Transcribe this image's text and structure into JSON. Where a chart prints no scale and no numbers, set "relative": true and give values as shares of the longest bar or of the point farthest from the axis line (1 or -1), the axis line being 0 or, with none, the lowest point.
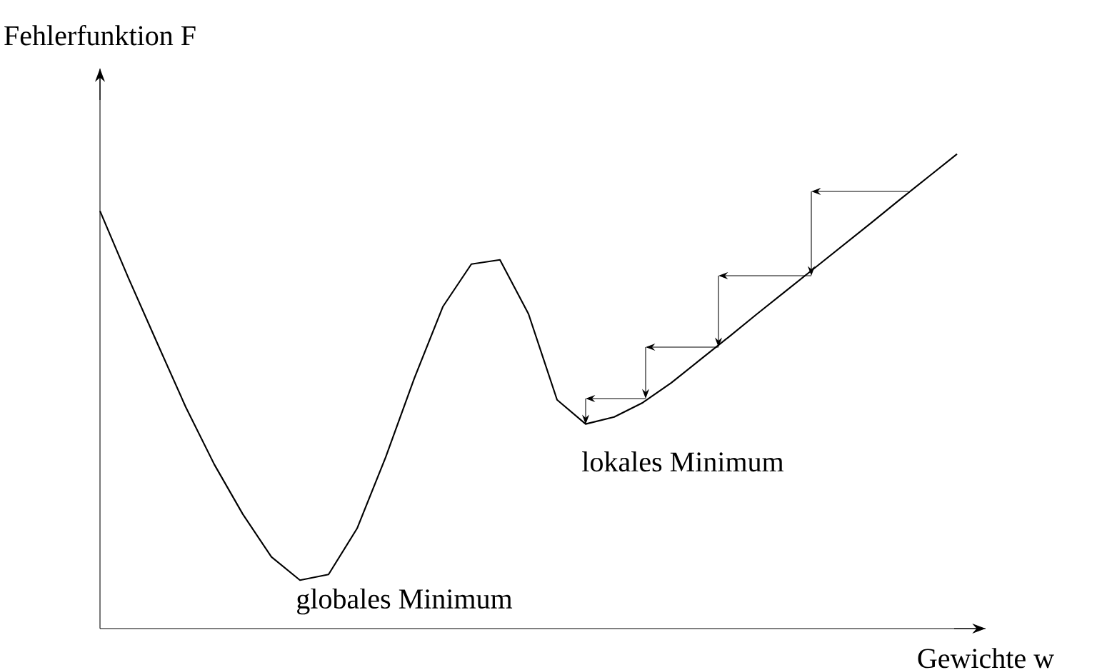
{
  "chart_data": {
    "type": "line",
    "relative": true,
    "xlabel": "Gewichte w",
    "ylabel": "Fehlerfunktion F",
    "annotations": [
      "globales Minimum",
      "lokales Minimum"
    ],
    "marker": "none",
    "line_style": "solid",
    "categories": [
      null,
      null,
      null,
      null,
      null,
      null,
      null,
      null,
      null,
      null,
      null,
      null,
      null,
      null,
      null,
      null,
      null,
      null,
      null,
      null,
      null,
      null,
      null,
      null,
      null,
      null,
      null,
      null,
      null,
      null,
      null
    ],
    "series": [
      {
        "color": "#000000",
        "values": [
          0.88,
          0.738,
          0.602,
          0.467,
          0.346,
          0.241,
          0.151,
          0.102,
          0.114,
          0.211,
          0.361,
          0.527,
          0.678,
          0.768,
          0.777,
          0.663,
          0.482,
          0.431,
          0.446,
          0.476,
          0.518,
          0.566,
          0.614,
          0.663,
          0.711,
          0.759,
          0.807,
          0.855,
          0.904,
          0.952,
          1
        ]
      }
    ]
  }
}
